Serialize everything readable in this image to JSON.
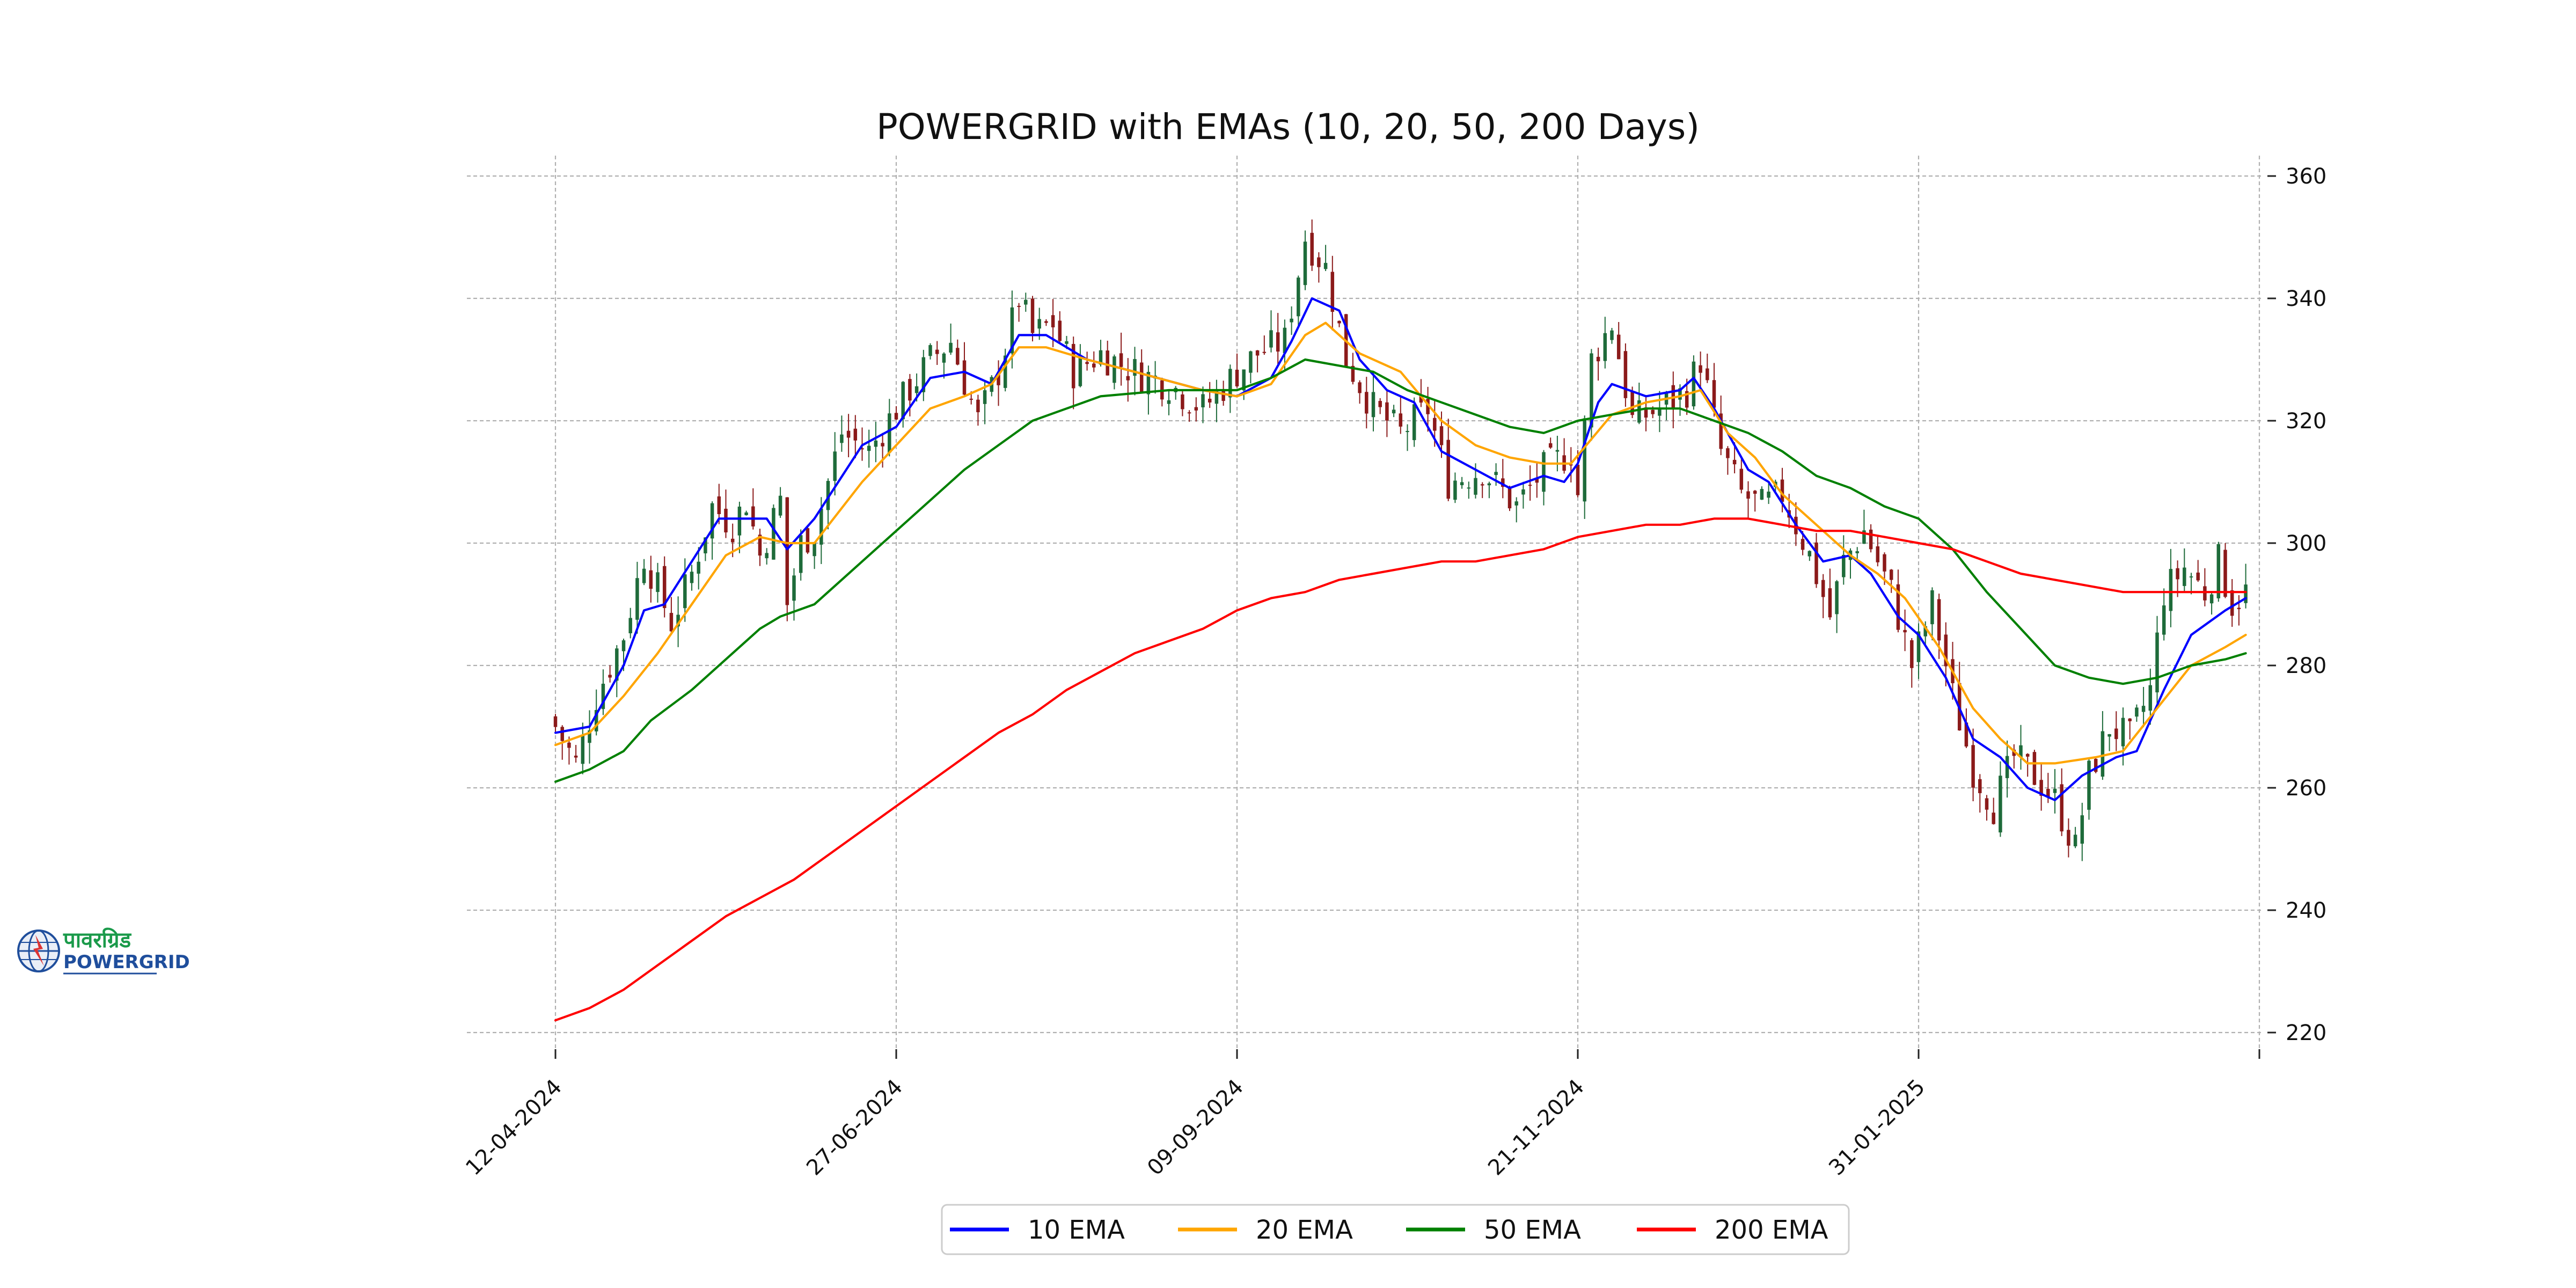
{
  "logo": {
    "hindi_text": "पावरग्रिड",
    "text": "POWERGRID",
    "colors": {
      "green": "#1a9a4a",
      "blue": "#1f4e9c"
    }
  },
  "chart_data": {
    "type": "candlestick",
    "title": "POWERGRID with EMAs (10, 20, 50, 200 Days)",
    "xlabel": "",
    "ylabel": "",
    "x_tick_labels": [
      "12-04-2024",
      "27-06-2024",
      "09-09-2024",
      "21-11-2024",
      "31-01-2025",
      ""
    ],
    "x_tick_index": [
      0,
      50,
      100,
      150,
      200,
      250
    ],
    "y_ticks": [
      220,
      240,
      260,
      280,
      300,
      320,
      340,
      360
    ],
    "ylim": [
      216,
      363
    ],
    "grid": true,
    "y_axis_side": "right",
    "legend_position": "bottom-center",
    "colors": {
      "up": "#1e6b3a",
      "down": "#8b1a1a",
      "grid": "#b0b0b0"
    },
    "candles_close_anchors": [
      [
        0,
        270
      ],
      [
        3,
        264
      ],
      [
        6,
        275
      ],
      [
        10,
        285
      ],
      [
        13,
        298
      ],
      [
        17,
        287
      ],
      [
        20,
        295
      ],
      [
        23,
        306
      ],
      [
        26,
        303
      ],
      [
        28,
        307
      ],
      [
        30,
        298
      ],
      [
        33,
        307
      ],
      [
        34,
        290
      ],
      [
        36,
        300
      ],
      [
        38,
        302
      ],
      [
        42,
        318
      ],
      [
        46,
        315
      ],
      [
        50,
        322
      ],
      [
        55,
        330
      ],
      [
        58,
        333
      ],
      [
        62,
        320
      ],
      [
        65,
        328
      ],
      [
        68,
        340
      ],
      [
        70,
        334
      ],
      [
        73,
        336
      ],
      [
        76,
        328
      ],
      [
        80,
        331
      ],
      [
        85,
        328
      ],
      [
        90,
        326
      ],
      [
        95,
        322
      ],
      [
        100,
        328
      ],
      [
        103,
        331
      ],
      [
        107,
        333
      ],
      [
        110,
        350
      ],
      [
        113,
        345
      ],
      [
        116,
        330
      ],
      [
        120,
        322
      ],
      [
        124,
        318
      ],
      [
        128,
        322
      ],
      [
        131,
        310
      ],
      [
        136,
        312
      ],
      [
        141,
        306
      ],
      [
        145,
        312
      ],
      [
        149,
        315
      ],
      [
        150,
        308
      ],
      [
        152,
        330
      ],
      [
        155,
        336
      ],
      [
        158,
        320
      ],
      [
        162,
        322
      ],
      [
        166,
        325
      ],
      [
        168,
        330
      ],
      [
        171,
        315
      ],
      [
        174,
        308
      ],
      [
        177,
        306
      ],
      [
        180,
        308
      ],
      [
        184,
        298
      ],
      [
        187,
        288
      ],
      [
        189,
        297
      ],
      [
        192,
        302
      ],
      [
        196,
        292
      ],
      [
        199,
        280
      ],
      [
        202,
        290
      ],
      [
        205,
        275
      ],
      [
        208,
        263
      ],
      [
        211,
        257
      ],
      [
        214,
        265
      ],
      [
        217,
        262
      ],
      [
        220,
        258
      ],
      [
        223,
        250
      ],
      [
        225,
        262
      ],
      [
        228,
        270
      ],
      [
        231,
        268
      ],
      [
        234,
        276
      ],
      [
        236,
        292
      ],
      [
        239,
        296
      ],
      [
        242,
        292
      ],
      [
        244,
        297
      ],
      [
        246,
        290
      ],
      [
        248,
        292
      ]
    ],
    "series": [
      {
        "name": "10 EMA",
        "color": "#0000ff",
        "points": [
          [
            0,
            269
          ],
          [
            5,
            270
          ],
          [
            10,
            280
          ],
          [
            13,
            289
          ],
          [
            16,
            290
          ],
          [
            20,
            297
          ],
          [
            24,
            304
          ],
          [
            28,
            304
          ],
          [
            31,
            304
          ],
          [
            34,
            299
          ],
          [
            38,
            304
          ],
          [
            45,
            316
          ],
          [
            50,
            319
          ],
          [
            55,
            327
          ],
          [
            60,
            328
          ],
          [
            64,
            326
          ],
          [
            68,
            334
          ],
          [
            72,
            334
          ],
          [
            78,
            330
          ],
          [
            85,
            328
          ],
          [
            95,
            325
          ],
          [
            100,
            324
          ],
          [
            105,
            327
          ],
          [
            108,
            333
          ],
          [
            111,
            340
          ],
          [
            115,
            338
          ],
          [
            118,
            330
          ],
          [
            122,
            325
          ],
          [
            126,
            323
          ],
          [
            130,
            315
          ],
          [
            135,
            312
          ],
          [
            140,
            309
          ],
          [
            145,
            311
          ],
          [
            148,
            310
          ],
          [
            150,
            313
          ],
          [
            153,
            323
          ],
          [
            155,
            326
          ],
          [
            160,
            324
          ],
          [
            165,
            325
          ],
          [
            167,
            327
          ],
          [
            170,
            322
          ],
          [
            175,
            312
          ],
          [
            178,
            310
          ],
          [
            182,
            303
          ],
          [
            186,
            297
          ],
          [
            190,
            298
          ],
          [
            193,
            295
          ],
          [
            197,
            288
          ],
          [
            200,
            285
          ],
          [
            204,
            278
          ],
          [
            208,
            268
          ],
          [
            212,
            265
          ],
          [
            216,
            260
          ],
          [
            220,
            258
          ],
          [
            224,
            262
          ],
          [
            229,
            265
          ],
          [
            232,
            266
          ],
          [
            236,
            276
          ],
          [
            240,
            285
          ],
          [
            245,
            289
          ],
          [
            248,
            291
          ]
        ]
      },
      {
        "name": "20 EMA",
        "color": "#ffa500",
        "points": [
          [
            0,
            267
          ],
          [
            5,
            269
          ],
          [
            10,
            275
          ],
          [
            15,
            282
          ],
          [
            20,
            290
          ],
          [
            25,
            298
          ],
          [
            30,
            301
          ],
          [
            34,
            300
          ],
          [
            38,
            300
          ],
          [
            45,
            310
          ],
          [
            50,
            316
          ],
          [
            55,
            322
          ],
          [
            60,
            324
          ],
          [
            64,
            326
          ],
          [
            68,
            332
          ],
          [
            72,
            332
          ],
          [
            78,
            330
          ],
          [
            85,
            328
          ],
          [
            95,
            325
          ],
          [
            100,
            324
          ],
          [
            105,
            326
          ],
          [
            110,
            334
          ],
          [
            113,
            336
          ],
          [
            118,
            331
          ],
          [
            124,
            328
          ],
          [
            130,
            320
          ],
          [
            135,
            316
          ],
          [
            140,
            314
          ],
          [
            145,
            313
          ],
          [
            149,
            313
          ],
          [
            152,
            317
          ],
          [
            155,
            321
          ],
          [
            160,
            323
          ],
          [
            165,
            324
          ],
          [
            168,
            325
          ],
          [
            172,
            318
          ],
          [
            176,
            314
          ],
          [
            180,
            308
          ],
          [
            185,
            303
          ],
          [
            190,
            298
          ],
          [
            194,
            295
          ],
          [
            198,
            291
          ],
          [
            203,
            283
          ],
          [
            208,
            273
          ],
          [
            212,
            268
          ],
          [
            216,
            264
          ],
          [
            220,
            264
          ],
          [
            226,
            265
          ],
          [
            230,
            266
          ],
          [
            235,
            273
          ],
          [
            240,
            280
          ],
          [
            245,
            283
          ],
          [
            248,
            285
          ]
        ]
      },
      {
        "name": "50 EMA",
        "color": "#008000",
        "points": [
          [
            0,
            261
          ],
          [
            5,
            263
          ],
          [
            10,
            266
          ],
          [
            14,
            271
          ],
          [
            20,
            276
          ],
          [
            25,
            281
          ],
          [
            30,
            286
          ],
          [
            33,
            288
          ],
          [
            38,
            290
          ],
          [
            45,
            297
          ],
          [
            50,
            302
          ],
          [
            55,
            307
          ],
          [
            60,
            312
          ],
          [
            65,
            316
          ],
          [
            70,
            320
          ],
          [
            75,
            322
          ],
          [
            80,
            324
          ],
          [
            90,
            325
          ],
          [
            95,
            325
          ],
          [
            100,
            325
          ],
          [
            105,
            327
          ],
          [
            110,
            330
          ],
          [
            115,
            329
          ],
          [
            120,
            328
          ],
          [
            125,
            325
          ],
          [
            130,
            323
          ],
          [
            135,
            321
          ],
          [
            140,
            319
          ],
          [
            145,
            318
          ],
          [
            150,
            320
          ],
          [
            155,
            321
          ],
          [
            160,
            322
          ],
          [
            165,
            322
          ],
          [
            170,
            320
          ],
          [
            175,
            318
          ],
          [
            180,
            315
          ],
          [
            185,
            311
          ],
          [
            190,
            309
          ],
          [
            195,
            306
          ],
          [
            200,
            304
          ],
          [
            205,
            299
          ],
          [
            210,
            292
          ],
          [
            215,
            286
          ],
          [
            220,
            280
          ],
          [
            225,
            278
          ],
          [
            230,
            277
          ],
          [
            235,
            278
          ],
          [
            240,
            280
          ],
          [
            245,
            281
          ],
          [
            248,
            282
          ]
        ]
      },
      {
        "name": "200 EMA",
        "color": "#ff0000",
        "points": [
          [
            0,
            222
          ],
          [
            5,
            224
          ],
          [
            10,
            227
          ],
          [
            15,
            231
          ],
          [
            20,
            235
          ],
          [
            25,
            239
          ],
          [
            30,
            242
          ],
          [
            35,
            245
          ],
          [
            40,
            249
          ],
          [
            45,
            253
          ],
          [
            50,
            257
          ],
          [
            55,
            261
          ],
          [
            60,
            265
          ],
          [
            65,
            269
          ],
          [
            70,
            272
          ],
          [
            75,
            276
          ],
          [
            80,
            279
          ],
          [
            85,
            282
          ],
          [
            90,
            284
          ],
          [
            95,
            286
          ],
          [
            100,
            289
          ],
          [
            105,
            291
          ],
          [
            110,
            292
          ],
          [
            115,
            294
          ],
          [
            120,
            295
          ],
          [
            125,
            296
          ],
          [
            130,
            297
          ],
          [
            135,
            297
          ],
          [
            140,
            298
          ],
          [
            145,
            299
          ],
          [
            150,
            301
          ],
          [
            155,
            302
          ],
          [
            160,
            303
          ],
          [
            165,
            303
          ],
          [
            170,
            304
          ],
          [
            175,
            304
          ],
          [
            180,
            303
          ],
          [
            185,
            302
          ],
          [
            190,
            302
          ],
          [
            195,
            301
          ],
          [
            200,
            300
          ],
          [
            205,
            299
          ],
          [
            210,
            297
          ],
          [
            215,
            295
          ],
          [
            220,
            294
          ],
          [
            225,
            293
          ],
          [
            230,
            292
          ],
          [
            235,
            292
          ],
          [
            240,
            292
          ],
          [
            245,
            292
          ],
          [
            248,
            292
          ]
        ]
      }
    ]
  }
}
